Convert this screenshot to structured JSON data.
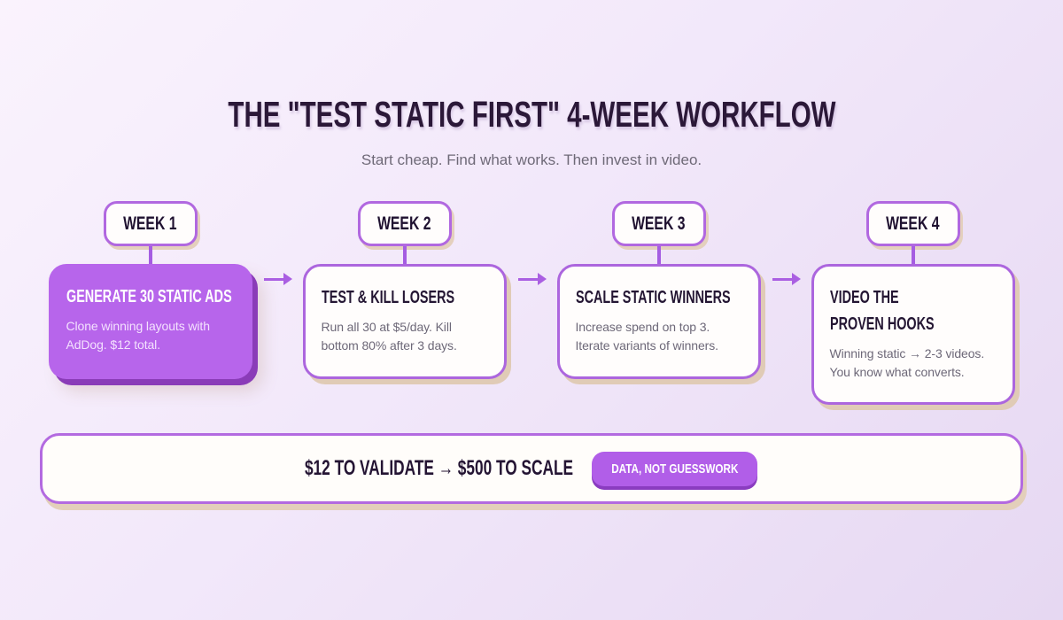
{
  "page": {
    "title": "THE \"TEST STATIC FIRST\" 4-WEEK WORKFLOW",
    "subtitle": "Start cheap. Find what works. Then invest in video."
  },
  "colors": {
    "accent_purple": "#b765eb",
    "accent_dark_purple": "#8a3cb8",
    "border_purple": "#ac66de",
    "shadow_tan": "#e0cbb6",
    "heading_ink": "#2b1838",
    "body_gray": "#6d6878"
  },
  "steps": [
    {
      "week": "WEEK 1",
      "title": "GENERATE 30 STATIC ADS",
      "body": "Clone winning layouts with AdDog. $12 total.",
      "variant": "filled"
    },
    {
      "week": "WEEK 2",
      "title": "TEST & KILL LOSERS",
      "body": "Run all 30 at $5/day. Kill bottom 80% after 3 days.",
      "variant": "outline"
    },
    {
      "week": "WEEK 3",
      "title": "SCALE STATIC WINNERS",
      "body": "Increase spend on top 3. Iterate variants of winners.",
      "variant": "outline"
    },
    {
      "week": "WEEK 4",
      "title": "VIDEO THE PROVEN HOOKS",
      "body": "Winning static → 2-3 videos. You know what converts.",
      "variant": "outline"
    }
  ],
  "footer": {
    "headline": "$12 TO VALIDATE → $500 TO SCALE",
    "badge": "DATA, NOT GUESSWORK"
  }
}
